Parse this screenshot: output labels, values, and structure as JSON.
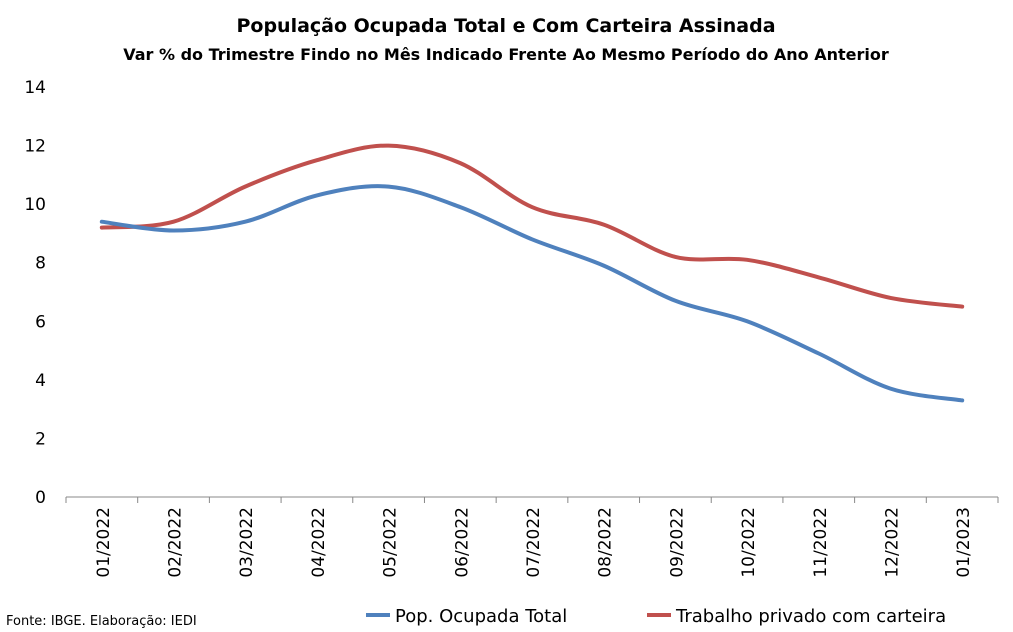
{
  "chart_data": {
    "type": "line",
    "title": "População Ocupada Total e Com Carteira Assinada",
    "subtitle": "Var % do Trimestre Findo no Mês Indicado Frente Ao Mesmo Período do Ano Anterior",
    "xlabel": "",
    "ylabel": "",
    "ylim": [
      0,
      14
    ],
    "yticks": [
      "0",
      "2",
      "4",
      "6",
      "8",
      "10",
      "12",
      "14"
    ],
    "categories": [
      "01/2022",
      "02/2022",
      "03/2022",
      "04/2022",
      "05/2022",
      "06/2022",
      "07/2022",
      "08/2022",
      "09/2022",
      "10/2022",
      "11/2022",
      "12/2022",
      "01/2023"
    ],
    "series": [
      {
        "name": "Pop. Ocupada Total",
        "color": "#4f81bd",
        "values": [
          9.4,
          9.1,
          9.4,
          10.3,
          10.6,
          9.9,
          8.8,
          7.9,
          6.7,
          6.0,
          4.9,
          3.7,
          3.3
        ]
      },
      {
        "name": "Trabalho privado com carteira",
        "color": "#c0504d",
        "values": [
          9.2,
          9.4,
          10.6,
          11.5,
          12.0,
          11.4,
          9.9,
          9.3,
          8.2,
          8.1,
          7.5,
          6.8,
          6.5
        ]
      }
    ],
    "grid": false,
    "legend": "bottom",
    "source": "Fonte: IBGE. Elaboração: IEDI"
  }
}
